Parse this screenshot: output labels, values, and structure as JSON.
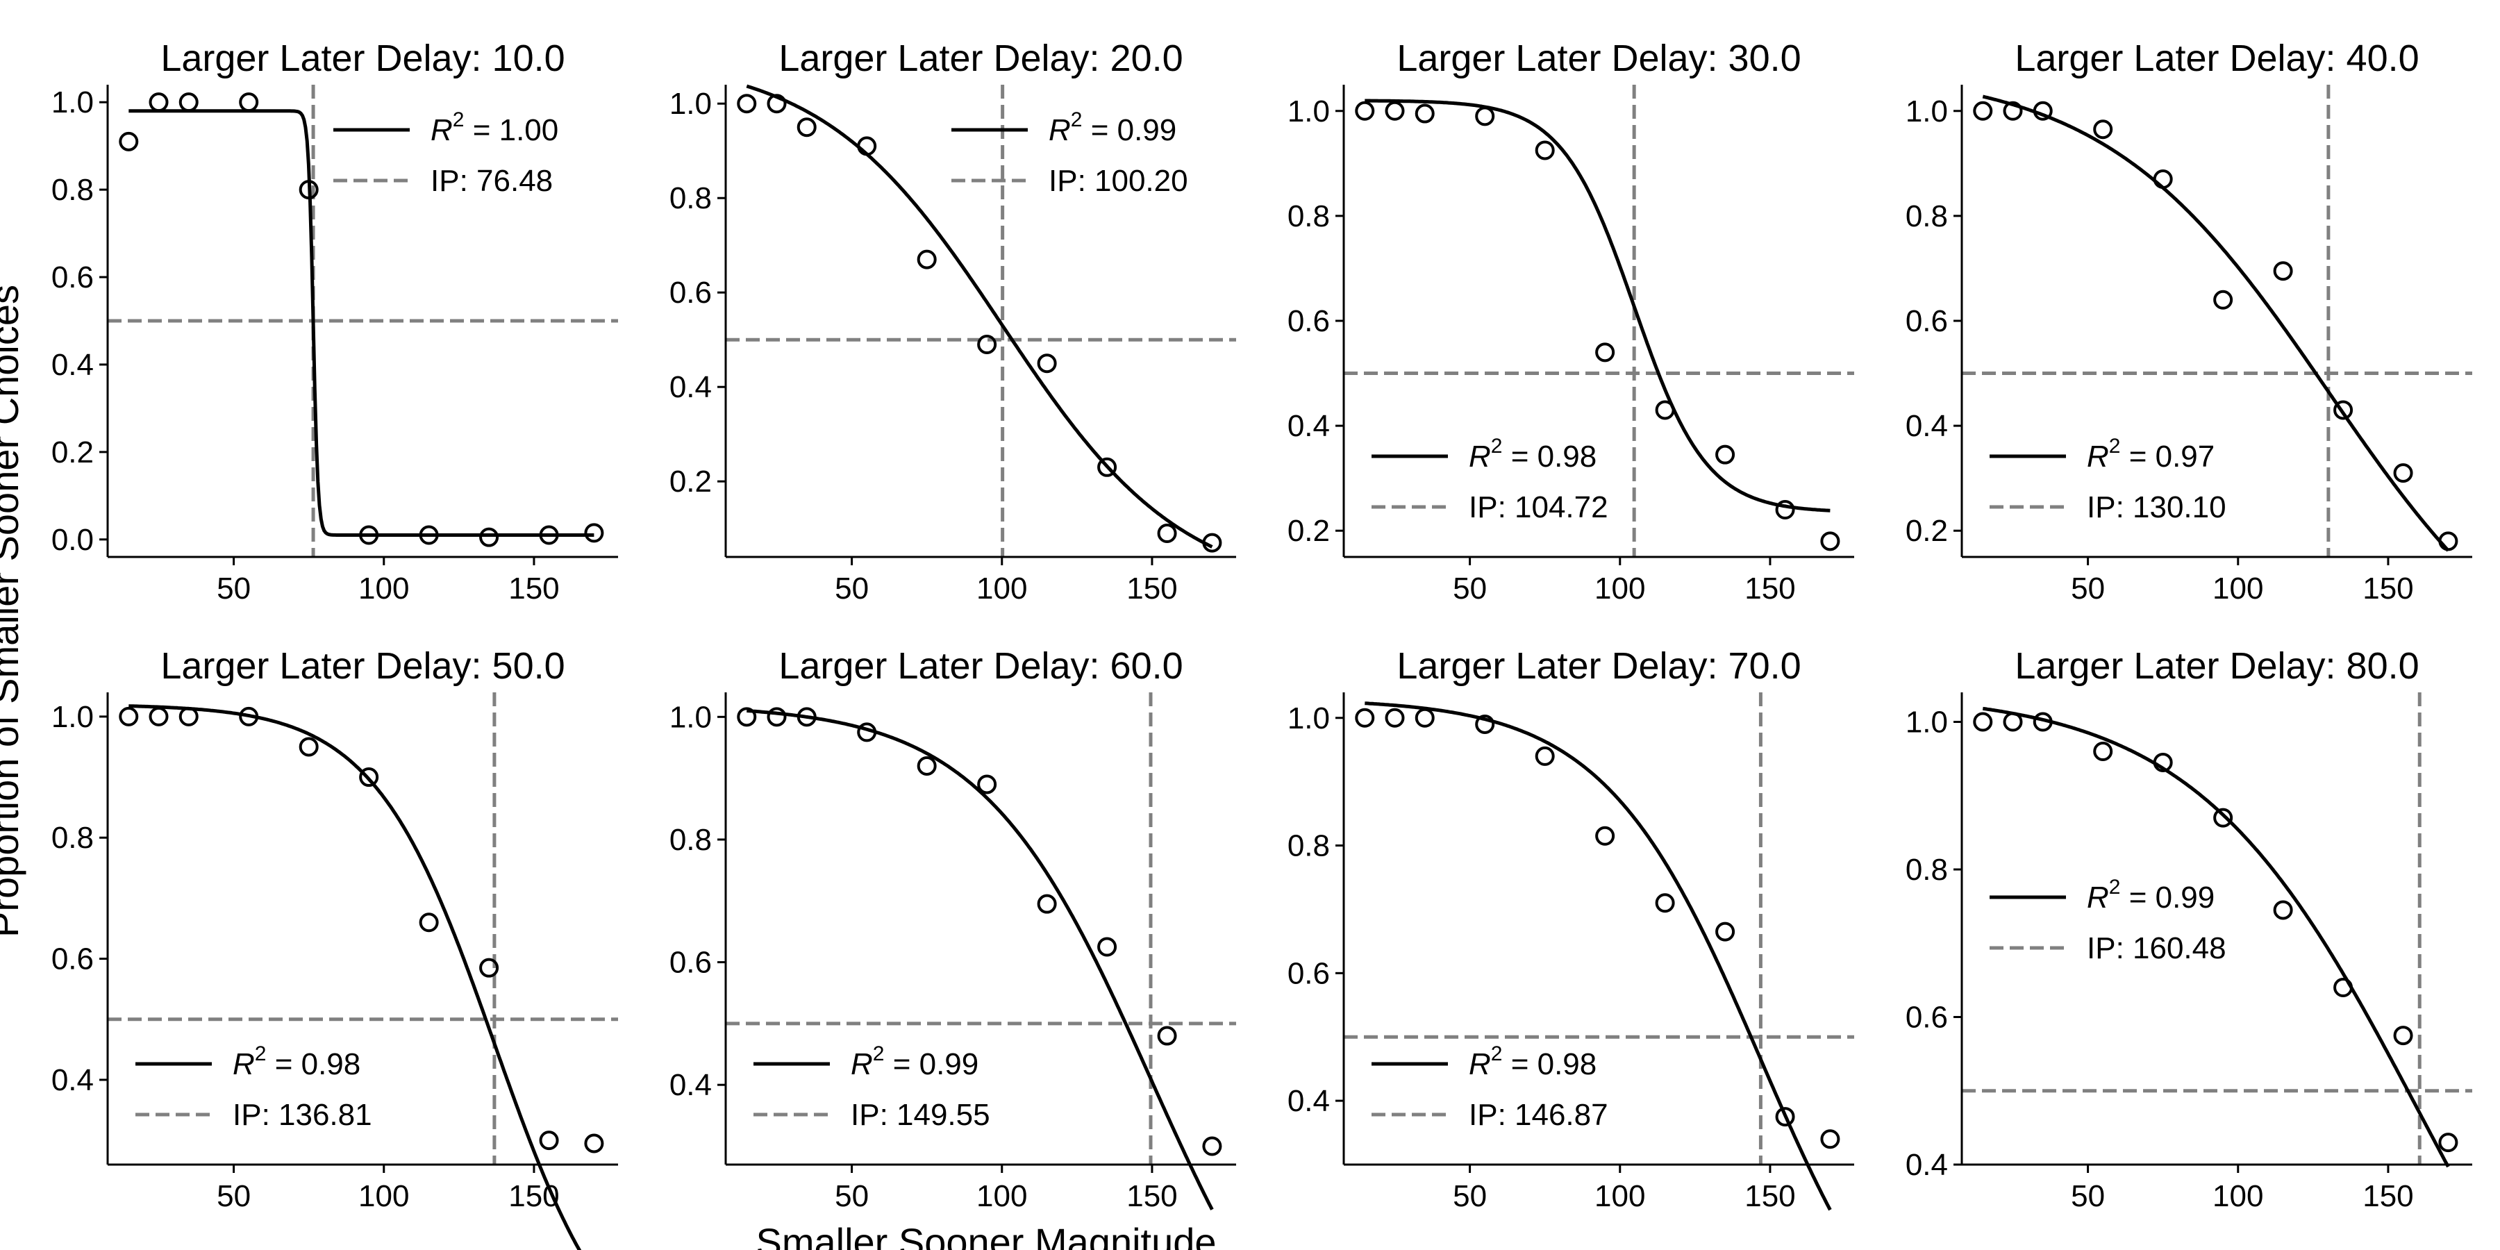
{
  "chart_data": {
    "type": "scatter",
    "ylabel": "Proportion of Smaller Sooner Choices",
    "xlabel": "Smaller Sooner Magnitude",
    "x": [
      15,
      25,
      35,
      55,
      75,
      95,
      115,
      135,
      155,
      170
    ],
    "colors": {
      "points": "#000000",
      "curve": "#000000",
      "reference": "#808080"
    },
    "panels": [
      {
        "title": "Larger Later Delay: 10.0",
        "points": [
          0.91,
          1.0,
          1.0,
          1.0,
          0.8,
          0.01,
          0.01,
          0.005,
          0.01,
          0.015
        ],
        "fit": {
          "bottom": 0.01,
          "top": 0.98,
          "ip": 76.48,
          "scale": 0.8
        },
        "legend": {
          "r2": "1.00",
          "ip_text": "IP: 76.48",
          "position": "top-right"
        },
        "xlim": [
          8,
          178
        ],
        "ylim": [
          -0.04,
          1.04
        ],
        "yticks": [
          0.0,
          0.2,
          0.4,
          0.6,
          0.8,
          1.0
        ],
        "yticklabels": [
          "0.0",
          "0.2",
          "0.4",
          "0.6",
          "0.8",
          "1.0"
        ],
        "xticks": [
          50,
          100,
          150
        ],
        "xticklabels": [
          "50",
          "100",
          "150"
        ]
      },
      {
        "title": "Larger Later Delay: 20.0",
        "points": [
          1.0,
          1.0,
          0.95,
          0.91,
          0.67,
          0.49,
          0.45,
          0.23,
          0.09,
          0.07
        ],
        "fit": {
          "bottom": -0.04,
          "top": 1.1,
          "ip": 100.2,
          "scale": 30
        },
        "legend": {
          "r2": "0.99",
          "ip_text": "IP: 100.20",
          "position": "top-right"
        },
        "xlim": [
          8,
          178
        ],
        "ylim": [
          0.04,
          1.04
        ],
        "yticks": [
          0.2,
          0.4,
          0.6,
          0.8,
          1.0
        ],
        "yticklabels": [
          "0.2",
          "0.4",
          "0.6",
          "0.8",
          "1.0"
        ],
        "xticks": [
          50,
          100,
          150
        ],
        "xticklabels": [
          "50",
          "100",
          "150"
        ]
      },
      {
        "title": "Larger Later Delay: 30.0",
        "points": [
          1.0,
          1.0,
          0.995,
          0.99,
          0.925,
          0.54,
          0.43,
          0.345,
          0.24,
          0.18
        ],
        "fit": {
          "bottom": 0.235,
          "top": 1.02,
          "ip": 104.72,
          "scale": 12
        },
        "legend": {
          "r2": "0.98",
          "ip_text": "IP: 104.72",
          "position": "bottom-left"
        },
        "xlim": [
          8,
          178
        ],
        "ylim": [
          0.15,
          1.05
        ],
        "yticks": [
          0.2,
          0.4,
          0.6,
          0.8,
          1.0
        ],
        "yticklabels": [
          "0.2",
          "0.4",
          "0.6",
          "0.8",
          "1.0"
        ],
        "xticks": [
          50,
          100,
          150
        ],
        "xticklabels": [
          "50",
          "100",
          "150"
        ]
      },
      {
        "title": "Larger Later Delay: 40.0",
        "points": [
          1.0,
          1.0,
          1.0,
          0.965,
          0.87,
          0.64,
          0.695,
          0.43,
          0.31,
          0.18
        ],
        "fit": {
          "bottom": -0.15,
          "top": 1.08,
          "ip": 130.1,
          "scale": 37
        },
        "legend": {
          "r2": "0.97",
          "ip_text": "IP: 130.10",
          "position": "bottom-left"
        },
        "xlim": [
          8,
          178
        ],
        "ylim": [
          0.15,
          1.05
        ],
        "yticks": [
          0.2,
          0.4,
          0.6,
          0.8,
          1.0
        ],
        "yticklabels": [
          "0.2",
          "0.4",
          "0.6",
          "0.8",
          "1.0"
        ],
        "xticks": [
          50,
          100,
          150
        ],
        "xticklabels": [
          "50",
          "100",
          "150"
        ]
      },
      {
        "title": "Larger Later Delay: 50.0",
        "points": [
          1.0,
          1.0,
          1.0,
          1.0,
          0.95,
          0.9,
          0.66,
          0.585,
          0.3,
          0.295
        ],
        "fit": {
          "bottom": -0.1,
          "top": 1.02,
          "ip": 136.81,
          "scale": 20
        },
        "legend": {
          "r2": "0.98",
          "ip_text": "IP: 136.81",
          "position": "bottom-left"
        },
        "xlim": [
          8,
          178
        ],
        "ylim": [
          0.26,
          1.04
        ],
        "yticks": [
          0.4,
          0.6,
          0.8,
          1.0
        ],
        "yticklabels": [
          "0.4",
          "0.6",
          "0.8",
          "1.0"
        ],
        "xticks": [
          50,
          100,
          150
        ],
        "xticklabels": [
          "50",
          "100",
          "150"
        ]
      },
      {
        "title": "Larger Later Delay: 60.0",
        "points": [
          1.0,
          1.0,
          1.0,
          0.975,
          0.92,
          0.89,
          0.695,
          0.625,
          0.48,
          0.3
        ],
        "fit": {
          "bottom": -0.2,
          "top": 1.02,
          "ip": 149.55,
          "scale": 28
        },
        "legend": {
          "r2": "0.99",
          "ip_text": "IP: 149.55",
          "position": "bottom-left"
        },
        "xlim": [
          8,
          178
        ],
        "ylim": [
          0.27,
          1.04
        ],
        "yticks": [
          0.4,
          0.6,
          0.8,
          1.0
        ],
        "yticklabels": [
          "0.4",
          "0.6",
          "0.8",
          "1.0"
        ],
        "xticks": [
          50,
          100,
          150
        ],
        "xticklabels": [
          "50",
          "100",
          "150"
        ]
      },
      {
        "title": "Larger Later Delay: 70.0",
        "points": [
          1.0,
          1.0,
          1.0,
          0.99,
          0.94,
          0.815,
          0.71,
          0.665,
          0.375,
          0.34
        ],
        "fit": {
          "bottom": -0.1,
          "top": 1.03,
          "ip": 146.87,
          "scale": 26
        },
        "legend": {
          "r2": "0.98",
          "ip_text": "IP: 146.87",
          "position": "bottom-left"
        },
        "xlim": [
          8,
          178
        ],
        "ylim": [
          0.3,
          1.04
        ],
        "yticks": [
          0.4,
          0.6,
          0.8,
          1.0
        ],
        "yticklabels": [
          "0.4",
          "0.6",
          "0.8",
          "1.0"
        ],
        "xticks": [
          50,
          100,
          150
        ],
        "xticklabels": [
          "50",
          "100",
          "150"
        ]
      },
      {
        "title": "Larger Later Delay: 80.0",
        "points": [
          1.0,
          1.0,
          1.0,
          0.96,
          0.945,
          0.87,
          0.745,
          0.64,
          0.575,
          0.43
        ],
        "fit": {
          "bottom": -0.1,
          "top": 1.04,
          "ip": 160.48,
          "scale": 37
        },
        "legend": {
          "r2": "0.99",
          "ip_text": "IP: 160.48",
          "position": "middle-left"
        },
        "xlim": [
          8,
          178
        ],
        "ylim": [
          0.4,
          1.04
        ],
        "yticks": [
          0.4,
          0.6,
          0.8,
          1.0
        ],
        "yticklabels": [
          "0.4",
          "0.6",
          "0.8",
          "1.0"
        ],
        "xticks": [
          50,
          100,
          150
        ],
        "xticklabels": [
          "50",
          "100",
          "150"
        ]
      }
    ]
  }
}
